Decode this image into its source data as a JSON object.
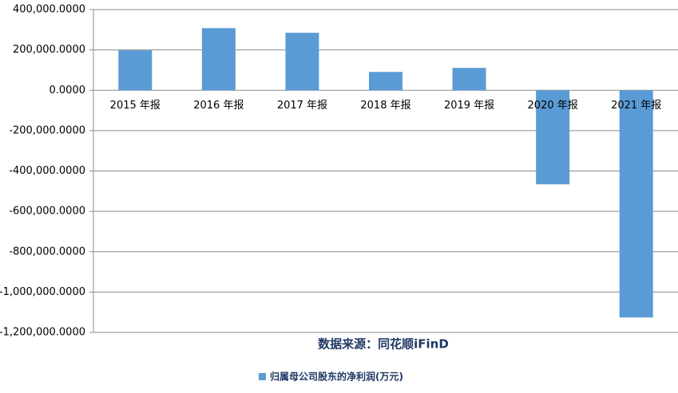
{
  "chart_data": {
    "type": "bar",
    "categories": [
      "2015 年报",
      "2016 年报",
      "2017 年报",
      "2018 年报",
      "2019 年报",
      "2020 年报",
      "2021 年报"
    ],
    "series": [
      {
        "name": "归属母公司股东的净利润(万元)",
        "color": "#5b9bd5",
        "values": [
          198000,
          308000,
          285000,
          91000,
          111000,
          -466000,
          -1126000
        ]
      }
    ],
    "ylim": [
      -1200000,
      400000
    ],
    "yticks": [
      {
        "value": -1200000,
        "label": "-1,200,000.0000"
      },
      {
        "value": -1000000,
        "label": "-1,000,000.0000"
      },
      {
        "value": -800000,
        "label": "-800,000.0000"
      },
      {
        "value": -600000,
        "label": "-600,000.0000"
      },
      {
        "value": -400000,
        "label": "-400,000.0000"
      },
      {
        "value": -200000,
        "label": "-200,000.0000"
      },
      {
        "value": 0,
        "label": "0.0000"
      },
      {
        "value": 200000,
        "label": "200,000.0000"
      },
      {
        "value": 400000,
        "label": "400,000.0000"
      }
    ],
    "grid": true,
    "annotation": "数据来源：同花顺iFinD",
    "legend": "bottom"
  }
}
